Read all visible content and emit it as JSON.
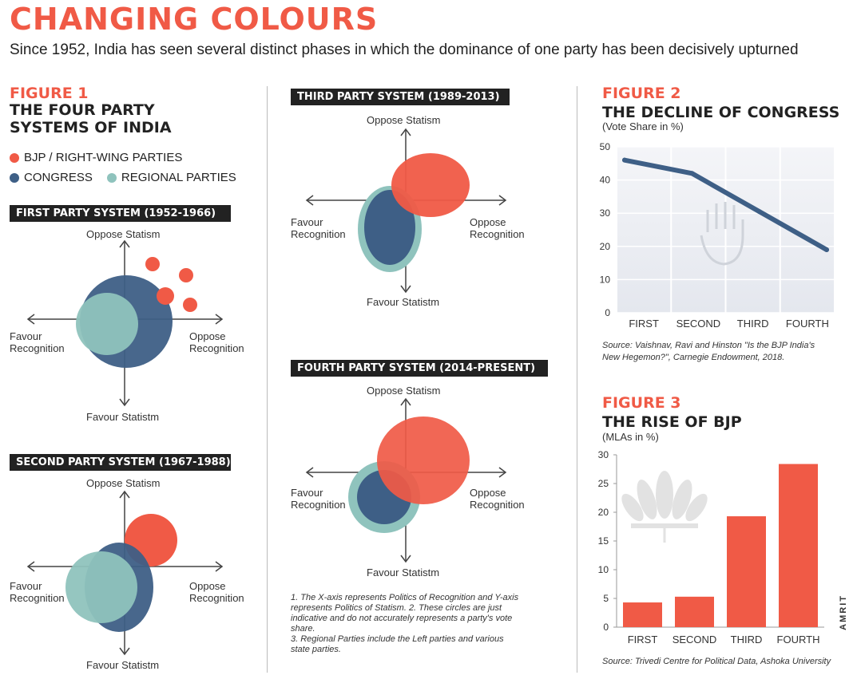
{
  "header": {
    "title": "CHANGING COLOURS",
    "subtitle": "Since 1952, India has seen several distinct phases in which the dominance of one party has been decisively upturned"
  },
  "figure1": {
    "label": "FIGURE 1",
    "title_line1": "THE FOUR PARTY",
    "title_line2": "SYSTEMS OF INDIA",
    "legend": {
      "bjp": "BJP / RIGHT-WING PARTIES",
      "congress": "CONGRESS",
      "regional": "REGIONAL PARTIES"
    },
    "axes": {
      "top": "Oppose Statism",
      "bottom": "Favour Statistm",
      "left_1": "Favour",
      "left_2": "Recognition",
      "right_1": "Oppose",
      "right_2": "Recognition"
    },
    "systems": [
      {
        "banner": "FIRST PARTY SYSTEM (1952-1966)"
      },
      {
        "banner": "SECOND PARTY SYSTEM (1967-1988)"
      },
      {
        "banner": "THIRD PARTY SYSTEM (1989-2013)"
      },
      {
        "banner": "FOURTH PARTY SYSTEM (2014-PRESENT)"
      }
    ],
    "notes": "1. The X-axis represents Politics of Recognition and Y-axis represents Politics of Statism.  2.  These circles are just indicative and do not accurately represents a party's vote share.\n3. Regional Parties include the Left parties and various state parties."
  },
  "colors": {
    "bjp": "#f05a46",
    "congress": "#3e5f86",
    "regional": "#8fc3bd",
    "line": "#3e5f86",
    "bar": "#f05a46"
  },
  "figure2": {
    "label": "FIGURE 2",
    "title": "THE DECLINE OF CONGRESS",
    "unit": "(Vote Share in %)",
    "source": "Source: Vaishnav, Ravi and Hinston \"Is the BJP India's New Hegemon?\", Carnegie Endowment, 2018."
  },
  "figure3": {
    "label": "FIGURE 3",
    "title": "THE RISE OF BJP",
    "unit": "(MLAs in %)",
    "source": "Source: Trivedi Centre for Political Data, Ashoka University"
  },
  "credit": "AMRIT",
  "chart_data": [
    {
      "type": "line",
      "title": "THE DECLINE OF CONGRESS",
      "ylabel": "(Vote Share in %)",
      "categories": [
        "FIRST",
        "SECOND",
        "THIRD",
        "FOURTH"
      ],
      "values": [
        46,
        42,
        30.5,
        19
      ],
      "ylim": [
        0,
        50
      ],
      "yticks": [
        0,
        10,
        20,
        30,
        40,
        50
      ],
      "grid": true
    },
    {
      "type": "bar",
      "title": "THE RISE OF BJP",
      "ylabel": "(MLAs in %)",
      "categories": [
        "FIRST",
        "SECOND",
        "THIRD",
        "FOURTH"
      ],
      "values": [
        4.3,
        5.3,
        19.3,
        28.4
      ],
      "ylim": [
        0,
        30
      ],
      "yticks": [
        0,
        5,
        10,
        15,
        20,
        25,
        30
      ],
      "grid": false
    }
  ]
}
